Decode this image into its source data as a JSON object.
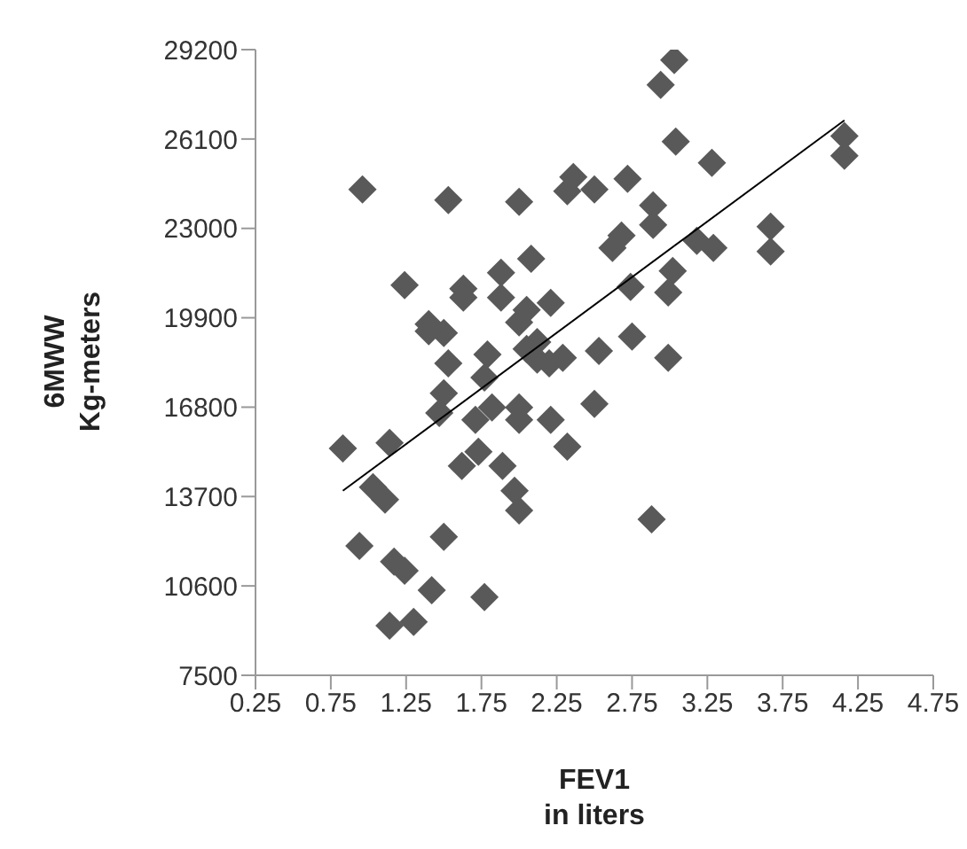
{
  "chart_data": {
    "type": "scatter",
    "xlabel": "FEV1\nin liters",
    "ylabel": "6MWW\nKg-meters",
    "xlim": [
      0.25,
      4.75
    ],
    "xticks": [
      0.25,
      0.75,
      1.25,
      1.75,
      2.25,
      2.75,
      3.25,
      3.75,
      4.25,
      4.75
    ],
    "ylim": [
      7500,
      29200
    ],
    "yticks": [
      7500,
      10600,
      13700,
      16800,
      19900,
      23000,
      26100,
      29200
    ],
    "grid": false,
    "legend": false,
    "marker": "diamond",
    "series": [
      {
        "color": "#595959",
        "x": [
          0.96,
          1.53,
          2.0,
          2.36,
          2.5,
          2.32,
          2.72,
          3.03,
          2.94,
          3.04,
          3.28,
          4.16,
          4.16,
          2.89,
          2.89,
          2.68,
          2.62,
          3.18,
          3.29,
          3.67,
          3.67,
          2.08,
          1.24,
          1.88,
          1.63,
          1.63,
          1.88,
          2.21,
          2.05,
          3.02,
          2.99,
          2.74,
          1.4,
          1.5,
          1.4,
          2.0,
          2.12,
          2.29,
          2.2,
          2.53,
          2.75,
          2.99,
          1.79,
          1.53,
          1.77,
          1.5,
          2.05,
          2.12,
          1.82,
          2.0,
          2.0,
          1.71,
          1.47,
          2.21,
          2.5,
          2.32,
          1.14,
          0.83,
          1.73,
          1.62,
          1.89,
          1.97,
          2.0,
          1.03,
          1.11,
          2.88,
          1.5,
          0.94,
          1.17,
          1.24,
          1.42,
          1.77,
          1.14,
          1.3
        ],
        "values": [
          24350,
          23980,
          23920,
          24780,
          24350,
          24290,
          24720,
          28840,
          27980,
          26010,
          25270,
          26200,
          25520,
          23800,
          23120,
          22750,
          22320,
          22570,
          22320,
          23060,
          22200,
          21950,
          21030,
          21460,
          20910,
          20600,
          20600,
          20420,
          20170,
          21520,
          20780,
          20970,
          19680,
          19370,
          19430,
          19740,
          19060,
          18510,
          18320,
          18750,
          19250,
          18510,
          18630,
          18320,
          17830,
          17280,
          18820,
          18450,
          16790,
          16790,
          16360,
          16360,
          16600,
          16360,
          16910,
          15430,
          15560,
          15370,
          15250,
          14760,
          14760,
          13900,
          13220,
          14020,
          13590,
          12910,
          12300,
          11990,
          11440,
          11130,
          10450,
          10210,
          9220,
          9350
        ]
      },
      {
        "type": "line",
        "color": "#000000",
        "marker": "none",
        "x": [
          0.83,
          4.16
        ],
        "values": [
          13900,
          26750
        ]
      }
    ]
  }
}
